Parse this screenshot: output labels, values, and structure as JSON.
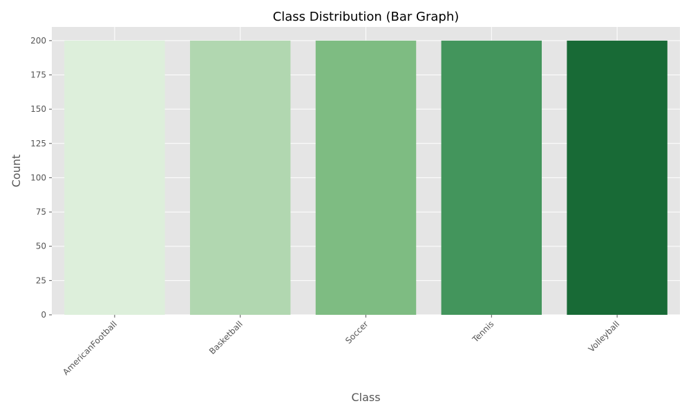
{
  "chart_data": {
    "type": "bar",
    "title": "Class Distribution (Bar Graph)",
    "xlabel": "Class",
    "ylabel": "Count",
    "categories": [
      "AmericanFootball",
      "Basketball",
      "Soccer",
      "Tennis",
      "Volleyball"
    ],
    "values": [
      200,
      200,
      200,
      200,
      200
    ],
    "ylim": [
      0,
      210
    ],
    "yticks": [
      0,
      25,
      50,
      75,
      100,
      125,
      150,
      175,
      200
    ],
    "xtick_rotation": 45,
    "grid": true,
    "legend": "none",
    "colors": {
      "background": "#e5e5e5",
      "grid": "#ffffff",
      "axis_text": "#555555",
      "title_text": "#000000",
      "bars": [
        "#ddefdb",
        "#b1d7b0",
        "#7ebc82",
        "#43955c",
        "#186a36"
      ]
    }
  }
}
